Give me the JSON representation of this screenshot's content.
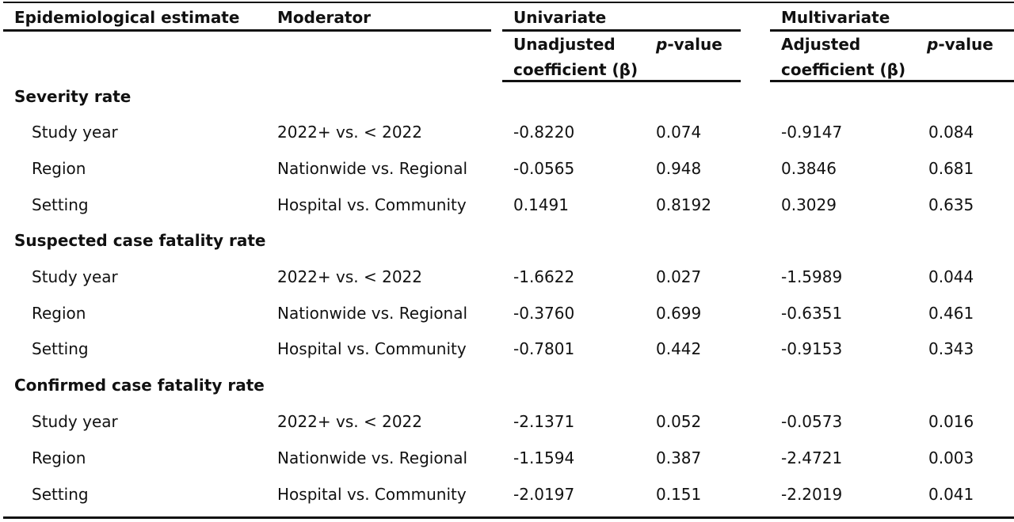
{
  "header": {
    "col_estimate": "Epidemiological estimate",
    "col_moderator": "Moderator",
    "group_univariate": "Univariate",
    "group_multivariate": "Multivariate",
    "unadjusted_line1": "Unadjusted",
    "unadjusted_line2": "coefficient (β)",
    "adjusted_line1": "Adjusted",
    "adjusted_line2": "coefficient (β)",
    "p_prefix": "p",
    "p_suffix": "-value"
  },
  "sections": [
    {
      "title": "Severity rate",
      "rows": [
        {
          "estimate": "Study year",
          "moderator": "2022+ vs. < 2022",
          "uni_coef": "-0.8220",
          "uni_p": "0.074",
          "multi_coef": "-0.9147",
          "multi_p": "0.084"
        },
        {
          "estimate": "Region",
          "moderator": "Nationwide vs. Regional",
          "uni_coef": "-0.0565",
          "uni_p": "0.948",
          "multi_coef": "0.3846",
          "multi_p": "0.681"
        },
        {
          "estimate": "Setting",
          "moderator": "Hospital vs. Community",
          "uni_coef": "0.1491",
          "uni_p": "0.8192",
          "multi_coef": "0.3029",
          "multi_p": "0.635"
        }
      ]
    },
    {
      "title": "Suspected case fatality rate",
      "rows": [
        {
          "estimate": "Study year",
          "moderator": "2022+ vs. < 2022",
          "uni_coef": "-1.6622",
          "uni_p": "0.027",
          "multi_coef": "-1.5989",
          "multi_p": "0.044"
        },
        {
          "estimate": "Region",
          "moderator": "Nationwide vs. Regional",
          "uni_coef": "-0.3760",
          "uni_p": "0.699",
          "multi_coef": "-0.6351",
          "multi_p": "0.461"
        },
        {
          "estimate": "Setting",
          "moderator": "Hospital vs. Community",
          "uni_coef": "-0.7801",
          "uni_p": "0.442",
          "multi_coef": "-0.9153",
          "multi_p": "0.343"
        }
      ]
    },
    {
      "title": "Confirmed case fatality rate",
      "rows": [
        {
          "estimate": "Study year",
          "moderator": "2022+ vs. < 2022",
          "uni_coef": "-2.1371",
          "uni_p": "0.052",
          "multi_coef": "-0.0573",
          "multi_p": "0.016"
        },
        {
          "estimate": "Region",
          "moderator": "Nationwide vs. Regional",
          "uni_coef": "-1.1594",
          "uni_p": "0.387",
          "multi_coef": "-2.4721",
          "multi_p": "0.003"
        },
        {
          "estimate": "Setting",
          "moderator": "Hospital vs. Community",
          "uni_coef": "-2.0197",
          "uni_p": "0.151",
          "multi_coef": "-2.2019",
          "multi_p": "0.041"
        }
      ]
    }
  ]
}
